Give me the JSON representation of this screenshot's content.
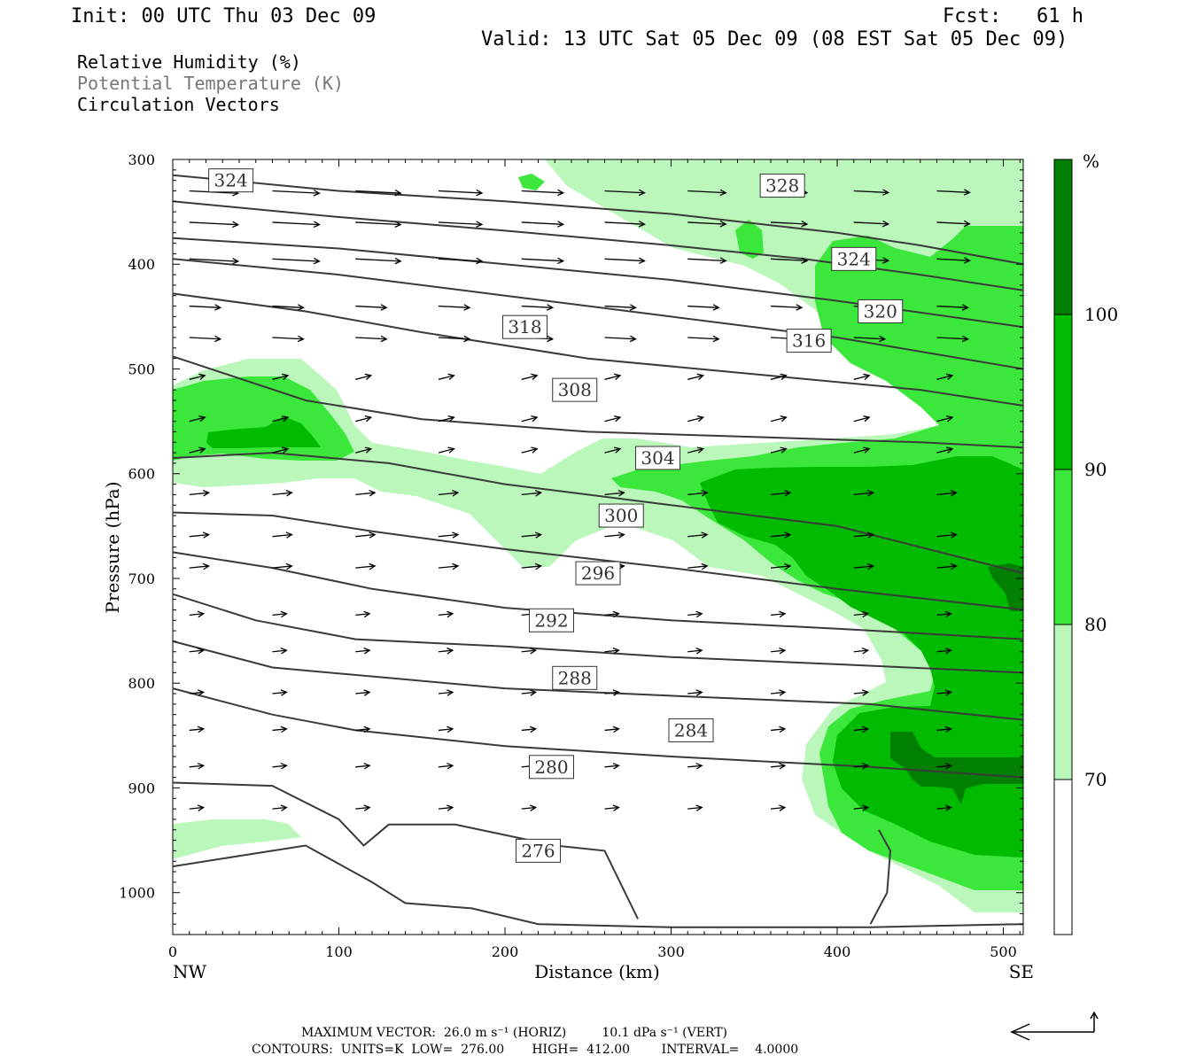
{
  "header": {
    "init": "Init: 00 UTC Thu 03 Dec 09",
    "fcst": "Fcst:   61 h",
    "valid": "Valid: 13 UTC Sat 05 Dec 09 (08 EST Sat 05 Dec 09)"
  },
  "fields": {
    "rh": "Relative Humidity (%)",
    "theta": "Potential Temperature (K)",
    "vectors": "Circulation Vectors"
  },
  "footer": {
    "max_vector": "MAXIMUM VECTOR:  26.0 m s⁻¹ (HORIZ)         10.1 dPa s⁻¹ (VERT)",
    "contours": "CONTOURS:  UNITS=K  LOW=  276.00       HIGH=  412.00        INTERVAL=    4.0000"
  },
  "colors": {
    "rh70": "#bbf7bb",
    "rh80": "#3ae73a",
    "rh90": "#00bb00",
    "rh100": "#007f00",
    "contour": "#3a3a3a"
  },
  "chart_data": {
    "type": "contour",
    "xlabel": "Distance (km)",
    "ylabel": "Pressure (hPa)",
    "xlim": [
      0,
      512
    ],
    "ylim": [
      1040,
      300
    ],
    "x_ticks": [
      0,
      100,
      200,
      300,
      400,
      500
    ],
    "y_ticks": [
      300,
      400,
      500,
      600,
      700,
      800,
      900,
      1000
    ],
    "left_endpoint": "NW",
    "right_endpoint": "SE",
    "colorbar": {
      "unit": "%",
      "levels": [
        70,
        80,
        90,
        100
      ]
    },
    "theta_labels": [
      {
        "text": "324",
        "x": 35,
        "p": 320
      },
      {
        "text": "328",
        "x": 367,
        "p": 325
      },
      {
        "text": "324",
        "x": 410,
        "p": 395
      },
      {
        "text": "320",
        "x": 426,
        "p": 445
      },
      {
        "text": "318",
        "x": 212,
        "p": 460
      },
      {
        "text": "316",
        "x": 383,
        "p": 473
      },
      {
        "text": "308",
        "x": 242,
        "p": 520
      },
      {
        "text": "304",
        "x": 292,
        "p": 585
      },
      {
        "text": "300",
        "x": 270,
        "p": 640
      },
      {
        "text": "296",
        "x": 256,
        "p": 695
      },
      {
        "text": "292",
        "x": 228,
        "p": 740
      },
      {
        "text": "288",
        "x": 242,
        "p": 795
      },
      {
        "text": "284",
        "x": 312,
        "p": 845
      },
      {
        "text": "280",
        "x": 228,
        "p": 880
      },
      {
        "text": "276",
        "x": 220,
        "p": 960
      }
    ],
    "theta_lines": [
      [
        [
          0,
          315
        ],
        [
          100,
          330
        ],
        [
          200,
          340
        ],
        [
          300,
          352
        ],
        [
          400,
          370
        ],
        [
          450,
          382
        ],
        [
          512,
          400
        ]
      ],
      [
        [
          0,
          340
        ],
        [
          100,
          355
        ],
        [
          200,
          368
        ],
        [
          300,
          382
        ],
        [
          380,
          395
        ],
        [
          450,
          410
        ],
        [
          512,
          425
        ]
      ],
      [
        [
          0,
          375
        ],
        [
          100,
          385
        ],
        [
          200,
          400
        ],
        [
          300,
          415
        ],
        [
          400,
          435
        ],
        [
          512,
          460
        ]
      ],
      [
        [
          0,
          395
        ],
        [
          100,
          410
        ],
        [
          200,
          430
        ],
        [
          300,
          450
        ],
        [
          400,
          470
        ],
        [
          512,
          500
        ]
      ],
      [
        [
          0,
          428
        ],
        [
          80,
          445
        ],
        [
          150,
          465
        ],
        [
          250,
          490
        ],
        [
          350,
          505
        ],
        [
          450,
          520
        ],
        [
          512,
          535
        ]
      ],
      [
        [
          0,
          488
        ],
        [
          80,
          530
        ],
        [
          150,
          548
        ],
        [
          250,
          560
        ],
        [
          350,
          565
        ],
        [
          450,
          570
        ],
        [
          512,
          575
        ]
      ],
      [
        [
          0,
          585
        ],
        [
          60,
          580
        ],
        [
          130,
          590
        ],
        [
          200,
          610
        ],
        [
          300,
          630
        ],
        [
          400,
          650
        ],
        [
          512,
          695
        ]
      ],
      [
        [
          0,
          637
        ],
        [
          60,
          640
        ],
        [
          120,
          655
        ],
        [
          200,
          672
        ],
        [
          300,
          690
        ],
        [
          400,
          710
        ],
        [
          512,
          730
        ]
      ],
      [
        [
          0,
          675
        ],
        [
          60,
          690
        ],
        [
          120,
          710
        ],
        [
          200,
          728
        ],
        [
          300,
          740
        ],
        [
          400,
          748
        ],
        [
          512,
          758
        ]
      ],
      [
        [
          0,
          715
        ],
        [
          50,
          740
        ],
        [
          110,
          758
        ],
        [
          200,
          765
        ],
        [
          300,
          775
        ],
        [
          400,
          782
        ],
        [
          512,
          790
        ]
      ],
      [
        [
          0,
          760
        ],
        [
          60,
          785
        ],
        [
          130,
          795
        ],
        [
          200,
          805
        ],
        [
          300,
          812
        ],
        [
          420,
          820
        ],
        [
          512,
          835
        ]
      ],
      [
        [
          0,
          805
        ],
        [
          60,
          830
        ],
        [
          110,
          845
        ],
        [
          200,
          860
        ],
        [
          300,
          870
        ],
        [
          420,
          880
        ],
        [
          512,
          890
        ]
      ],
      [
        [
          0,
          895
        ],
        [
          60,
          898
        ],
        [
          100,
          930
        ],
        [
          115,
          955
        ],
        [
          130,
          935
        ],
        [
          170,
          935
        ],
        [
          230,
          955
        ],
        [
          260,
          960
        ],
        [
          280,
          1025
        ]
      ],
      [
        [
          0,
          975
        ],
        [
          40,
          965
        ],
        [
          80,
          955
        ],
        [
          120,
          990
        ],
        [
          140,
          1010
        ],
        [
          180,
          1015
        ],
        [
          220,
          1030
        ],
        [
          300,
          1033
        ],
        [
          420,
          1033
        ],
        [
          512,
          1030
        ]
      ],
      [
        [
          420,
          1030
        ],
        [
          430,
          1000
        ],
        [
          432,
          960
        ],
        [
          425,
          940
        ]
      ]
    ]
  }
}
